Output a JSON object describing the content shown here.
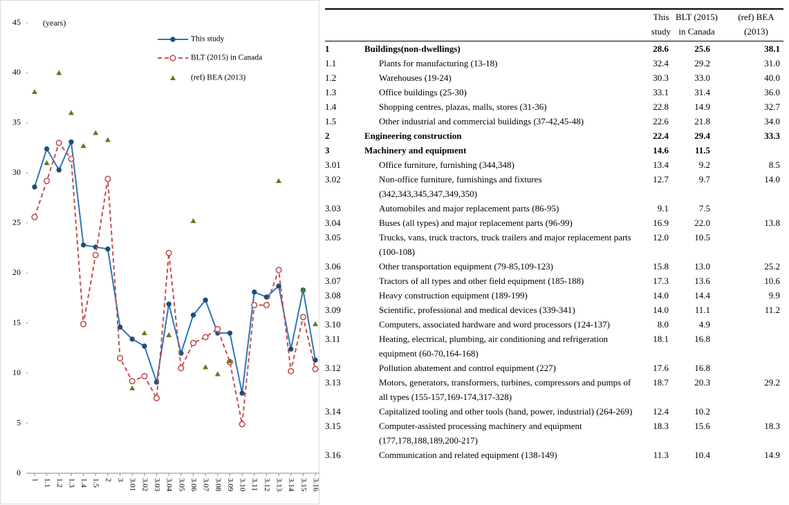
{
  "chart_data": {
    "type": "line",
    "annotation": "(years)",
    "categories": [
      "1",
      "1.1",
      "1.2",
      "1.3",
      "1.4",
      "1.5",
      "2",
      "3",
      "3.01",
      "3.02",
      "3.03",
      "3.04",
      "3.05",
      "3.06",
      "3.07",
      "3.08",
      "3.09",
      "3.10",
      "3.11",
      "3.12",
      "3.13",
      "3.14",
      "3.15",
      "3.16"
    ],
    "series": [
      {
        "name": "This study",
        "color": "#2e75b6",
        "marker": "dot",
        "line": "solid",
        "values": [
          28.6,
          32.4,
          30.3,
          33.1,
          22.8,
          22.6,
          22.4,
          14.6,
          13.4,
          12.7,
          9.1,
          16.9,
          12.0,
          15.8,
          17.3,
          14.0,
          14.0,
          8.0,
          18.1,
          17.6,
          18.7,
          12.4,
          18.3,
          11.3
        ]
      },
      {
        "name": "BLT (2015) in Canada",
        "color": "#c0504d",
        "marker": "circle",
        "line": "dashed",
        "values": [
          25.6,
          29.2,
          33.0,
          31.4,
          14.9,
          21.8,
          29.4,
          11.5,
          9.2,
          9.7,
          7.5,
          22.0,
          10.5,
          13.0,
          13.6,
          14.4,
          11.1,
          4.9,
          16.8,
          16.8,
          20.3,
          10.2,
          15.6,
          10.4
        ]
      },
      {
        "name": "(ref) BEA (2013)",
        "color": "#5b7a1e",
        "marker": "triangle",
        "line": "none",
        "values": [
          38.1,
          31.0,
          40.0,
          36.0,
          32.7,
          34.0,
          33.3,
          null,
          8.5,
          14.0,
          null,
          13.8,
          null,
          25.2,
          10.6,
          9.9,
          11.2,
          null,
          null,
          null,
          29.2,
          null,
          18.3,
          14.9
        ]
      }
    ],
    "ylim": [
      0,
      45
    ],
    "yticks": [
      0,
      5,
      10,
      15,
      20,
      25,
      30,
      35,
      40,
      45
    ],
    "grid": false
  },
  "table": {
    "header": [
      "This study",
      "BLT (2015) in Canada",
      "(ref) BEA (2013)"
    ],
    "rows": [
      {
        "id": "1",
        "label": "Buildings(non-dwellings)",
        "bold": true,
        "values": [
          "28.6",
          "25.6",
          "38.1"
        ]
      },
      {
        "id": "1.1",
        "label": "Plants for manufacturing (13-18)",
        "values": [
          "32.4",
          "29.2",
          "31.0"
        ]
      },
      {
        "id": "1.2",
        "label": "Warehouses (19-24)",
        "values": [
          "30.3",
          "33.0",
          "40.0"
        ]
      },
      {
        "id": "1.3",
        "label": "Office buildings (25-30)",
        "values": [
          "33.1",
          "31.4",
          "36.0"
        ]
      },
      {
        "id": "1.4",
        "label": "Shopping centres, plazas, malls, stores (31-36)",
        "values": [
          "22.8",
          "14.9",
          "32.7"
        ]
      },
      {
        "id": "1.5",
        "label": "Other industrial and commercial buildings (37-42,45-48)",
        "values": [
          "22.6",
          "21.8",
          "34.0"
        ]
      },
      {
        "id": "2",
        "label": "Engineering construction",
        "bold": true,
        "values": [
          "22.4",
          "29.4",
          "33.3"
        ]
      },
      {
        "id": "3",
        "label": "Machinery and equipment",
        "bold": true,
        "values": [
          "14.6",
          "11.5",
          null
        ]
      },
      {
        "id": "3.01",
        "label": "Office furniture, furnishing (344,348)",
        "values": [
          "13.4",
          "9.2",
          "8.5"
        ]
      },
      {
        "id": "3.02",
        "label": "Non-office furniture, furnishings and fixtures (342,343,345,347,349,350)",
        "values": [
          "12.7",
          "9.7",
          "14.0"
        ]
      },
      {
        "id": "3.03",
        "label": "Automobiles and major replacement parts (86-95)",
        "values": [
          "9.1",
          "7.5",
          null
        ]
      },
      {
        "id": "3.04",
        "label": "Buses (all types) and major replacement parts (96-99)",
        "values": [
          "16.9",
          "22.0",
          "13.8"
        ]
      },
      {
        "id": "3.05",
        "label": "Trucks, vans, truck tractors, truck trailers and major replacement parts (100-108)",
        "values": [
          "12.0",
          "10.5",
          null
        ]
      },
      {
        "id": "3.06",
        "label": "Other transportation equipment (79-85,109-123)",
        "values": [
          "15.8",
          "13.0",
          "25.2"
        ]
      },
      {
        "id": "3.07",
        "label": "Tractors of all types and other field equipment (185-188)",
        "values": [
          "17.3",
          "13.6",
          "10.6"
        ]
      },
      {
        "id": "3.08",
        "label": "Heavy construction equipment (189-199)",
        "values": [
          "14.0",
          "14.4",
          "9.9"
        ]
      },
      {
        "id": "3.09",
        "label": "Scientific, professional and medical devices (339-341)",
        "values": [
          "14.0",
          "11.1",
          "11.2"
        ]
      },
      {
        "id": "3.10",
        "label": "Computers, associated hardware and word processors (124-137)",
        "values": [
          "8.0",
          "4.9",
          null
        ]
      },
      {
        "id": "3.11",
        "label": "Heating, electrical, plumbing, air conditioning and refrigeration equipment (60-70,164-168)",
        "values": [
          "18.1",
          "16.8",
          null
        ]
      },
      {
        "id": "3.12",
        "label": "Pollution abatement and control equipment (227)",
        "values": [
          "17.6",
          "16.8",
          null
        ]
      },
      {
        "id": "3.13",
        "label": "Motors, generators, transformers, turbines, compressors and pumps of all types (155-157,169-174,317-328)",
        "values": [
          "18.7",
          "20.3",
          "29.2"
        ]
      },
      {
        "id": "3.14",
        "label": "Capitalized tooling and other tools (hand, power, industrial) (264-269)",
        "values": [
          "12.4",
          "10.2",
          null
        ]
      },
      {
        "id": "3.15",
        "label": "Computer-assisted processing machinery and equipment (177,178,188,189,200-217)",
        "values": [
          "18.3",
          "15.6",
          "18.3"
        ]
      },
      {
        "id": "3.16",
        "label": "Communication and related equipment (138-149)",
        "values": [
          "11.3",
          "10.4",
          "14.9"
        ]
      }
    ]
  }
}
